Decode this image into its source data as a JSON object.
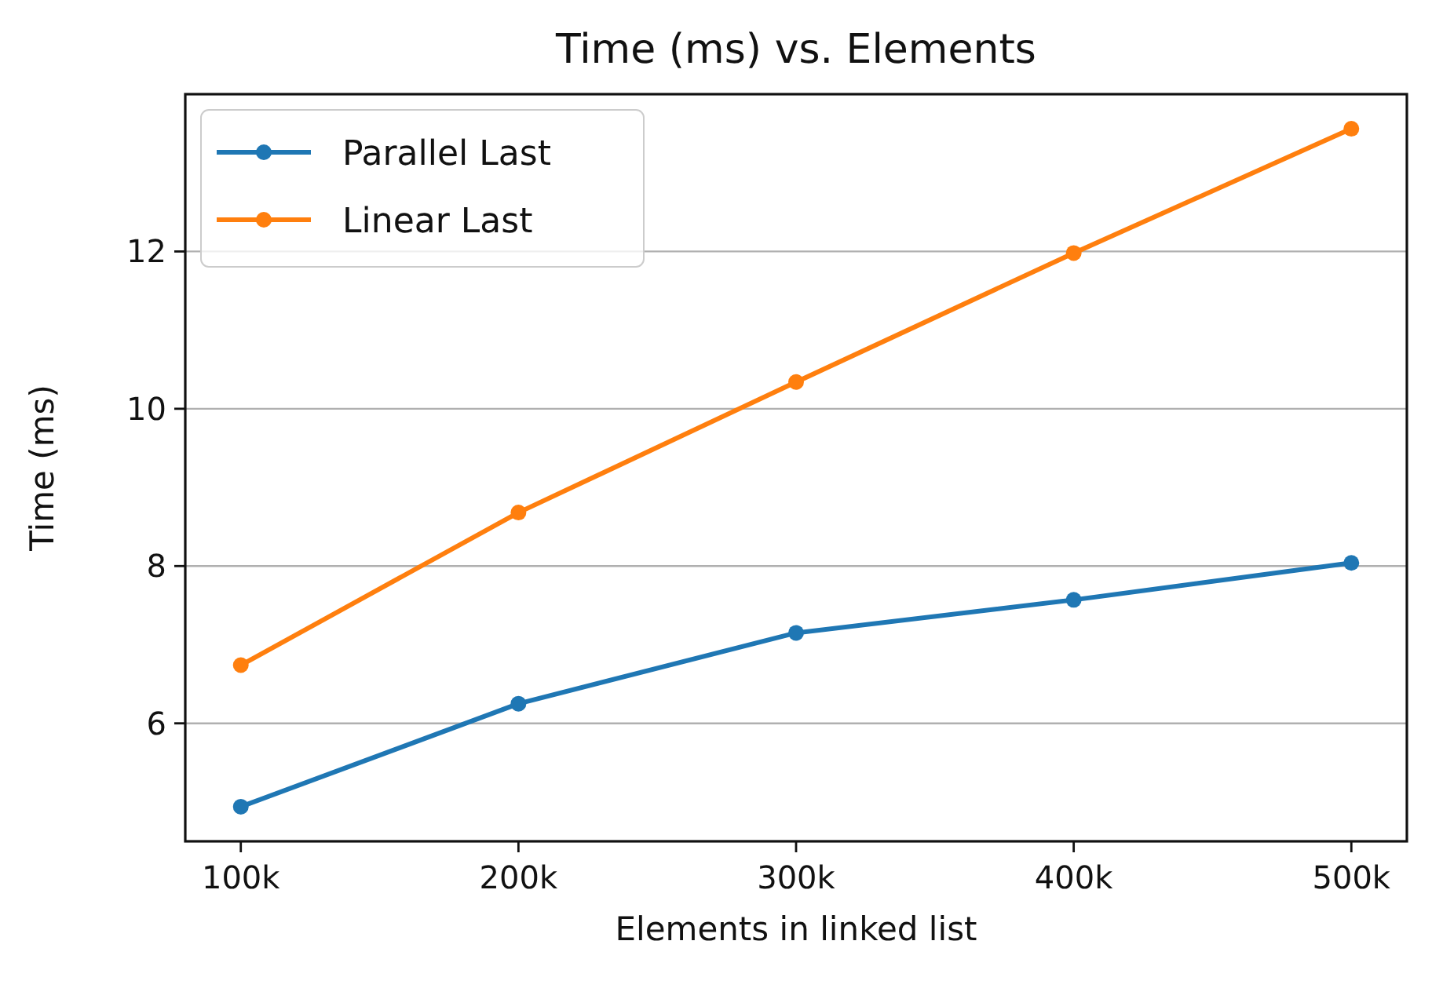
{
  "chart_data": {
    "type": "line",
    "title": "Time (ms) vs. Elements",
    "xlabel": "Elements in linked list",
    "ylabel": "Time (ms)",
    "x": [
      100000,
      200000,
      300000,
      400000,
      500000
    ],
    "series": [
      {
        "name": "Parallel Last",
        "color": "#1f77b4",
        "values": [
          4.94,
          6.25,
          7.15,
          7.57,
          8.04
        ]
      },
      {
        "name": "Linear Last",
        "color": "#ff7f0e",
        "values": [
          6.74,
          8.68,
          10.34,
          11.98,
          13.56
        ]
      }
    ],
    "xlim": [
      80000,
      520000
    ],
    "xticks": [
      {
        "value": 100000,
        "label": "100k"
      },
      {
        "value": 200000,
        "label": "200k"
      },
      {
        "value": 300000,
        "label": "300k"
      },
      {
        "value": 400000,
        "label": "400k"
      },
      {
        "value": 500000,
        "label": "500k"
      }
    ],
    "ylim": [
      4.5,
      14.0
    ],
    "yticks": [
      6,
      8,
      10,
      12
    ],
    "grid": "y",
    "legend": "top left",
    "marker": "circle",
    "line_style": "solid"
  }
}
